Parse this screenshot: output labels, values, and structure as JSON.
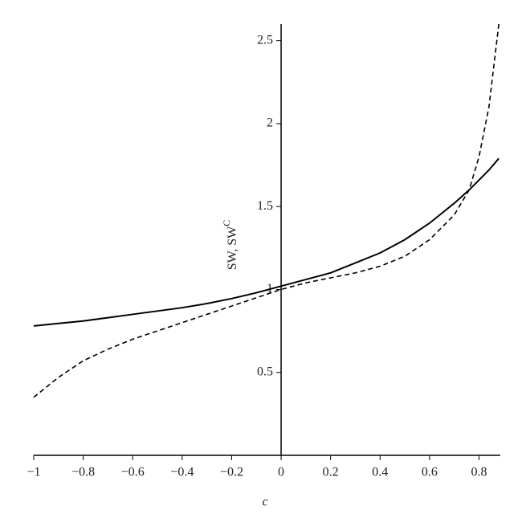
{
  "chart_data": {
    "type": "line",
    "xlabel": "c",
    "ylabel": "SW, SW",
    "ylabel_superscript": "C",
    "x": [
      -1,
      -0.9,
      -0.8,
      -0.7,
      -0.6,
      -0.5,
      -0.4,
      -0.3,
      -0.2,
      -0.1,
      0,
      0.1,
      0.2,
      0.3,
      0.4,
      0.5,
      0.6,
      0.7,
      0.76,
      0.8,
      0.84,
      0.88
    ],
    "series": [
      {
        "color": "#000000",
        "style": "solid",
        "values": [
          0.78,
          0.795,
          0.81,
          0.83,
          0.85,
          0.87,
          0.89,
          0.915,
          0.945,
          0.98,
          1.02,
          1.06,
          1.1,
          1.16,
          1.22,
          1.3,
          1.4,
          1.52,
          1.6,
          1.66,
          1.72,
          1.79
        ]
      },
      {
        "color": "#000000",
        "style": "dashed",
        "values": [
          0.35,
          0.47,
          0.57,
          0.64,
          0.7,
          0.75,
          0.8,
          0.85,
          0.9,
          0.95,
          1.0,
          1.04,
          1.07,
          1.1,
          1.14,
          1.2,
          1.3,
          1.45,
          1.6,
          1.8,
          2.1,
          2.6
        ]
      }
    ],
    "xlim": [
      -1,
      0.886
    ],
    "ylim": [
      0,
      2.6
    ],
    "xticks": [
      {
        "value": -1,
        "label": "−1"
      },
      {
        "value": -0.8,
        "label": "−0.8"
      },
      {
        "value": -0.6,
        "label": "−0.6"
      },
      {
        "value": -0.4,
        "label": "−0.4"
      },
      {
        "value": -0.2,
        "label": "−0.2"
      },
      0,
      0.2,
      0.4,
      0.6,
      0.8
    ],
    "yticks": [
      0.5,
      1,
      1.5,
      2,
      2.5
    ],
    "grid": false
  }
}
